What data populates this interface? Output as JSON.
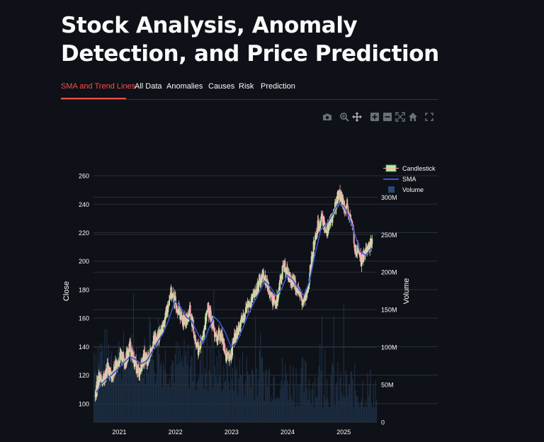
{
  "page": {
    "title": "Stock Analysis, Anomaly Detection, and Price Prediction"
  },
  "tabs": [
    {
      "label": "SMA and Trend Lines",
      "active": true
    },
    {
      "label": "All Data",
      "active": false
    },
    {
      "label": "Anomalies",
      "active": false
    },
    {
      "label": "Causes",
      "active": false
    },
    {
      "label": "Risk",
      "active": false
    },
    {
      "label": "Prediction",
      "active": false
    }
  ],
  "modebar": {
    "icons": [
      "camera-icon",
      "zoom-icon",
      "pan-icon",
      "zoom-in-icon",
      "zoom-out-icon",
      "autoscale-icon",
      "home-icon",
      "fullscreen-icon"
    ]
  },
  "colors": {
    "accent": "#ff4b4b",
    "increasing": "#c9e4a6",
    "decreasing": "#f2a7b0",
    "sma": "#3a55c8",
    "volume": "#2a4a6e",
    "background": "#0e1117"
  },
  "chart_data": {
    "type": "line",
    "title": "",
    "xlabel": "",
    "ylabel": "Close",
    "y2label": "Volume",
    "xlim": [
      2020.55,
      2025.6
    ],
    "ylim": [
      87,
      266
    ],
    "y2lim": [
      0,
      340
    ],
    "x_ticks": [
      2021,
      2022,
      2023,
      2024,
      2025
    ],
    "y_ticks": [
      100,
      120,
      140,
      160,
      180,
      200,
      220,
      240,
      260
    ],
    "y2_ticks": [
      {
        "value": 0,
        "label": "0"
      },
      {
        "value": 50,
        "label": "50M"
      },
      {
        "value": 100,
        "label": "100M"
      },
      {
        "value": 150,
        "label": "150M"
      },
      {
        "value": 200,
        "label": "200M"
      },
      {
        "value": 250,
        "label": "250M"
      },
      {
        "value": 300,
        "label": "300M"
      }
    ],
    "grid": true,
    "legend_position": "top-right",
    "legend": [
      {
        "name": "Candlestick",
        "type": "candlestick"
      },
      {
        "name": "SMA",
        "type": "line"
      },
      {
        "name": "Volume",
        "type": "bar"
      }
    ],
    "series": [
      {
        "name": "Close",
        "x": [
          2020.58,
          2020.65,
          2020.72,
          2020.8,
          2020.88,
          2020.95,
          2021.05,
          2021.12,
          2021.2,
          2021.28,
          2021.37,
          2021.45,
          2021.52,
          2021.6,
          2021.68,
          2021.76,
          2021.84,
          2021.92,
          2022.0,
          2022.06,
          2022.12,
          2022.2,
          2022.27,
          2022.35,
          2022.42,
          2022.5,
          2022.58,
          2022.66,
          2022.74,
          2022.82,
          2022.9,
          2022.97,
          2023.05,
          2023.12,
          2023.2,
          2023.28,
          2023.36,
          2023.45,
          2023.52,
          2023.58,
          2023.65,
          2023.72,
          2023.8,
          2023.88,
          2023.96,
          2024.05,
          2024.12,
          2024.2,
          2024.28,
          2024.35,
          2024.42,
          2024.48,
          2024.55,
          2024.62,
          2024.7,
          2024.78,
          2024.85,
          2024.92,
          2024.98,
          2025.05,
          2025.12,
          2025.18,
          2025.22,
          2025.27,
          2025.32,
          2025.38,
          2025.45,
          2025.52
        ],
        "values": [
          105,
          120,
          115,
          125,
          117,
          128,
          133,
          130,
          140,
          128,
          122,
          133,
          130,
          143,
          146,
          150,
          162,
          178,
          172,
          167,
          160,
          158,
          165,
          148,
          137,
          146,
          168,
          158,
          145,
          150,
          135,
          130,
          144,
          150,
          158,
          168,
          172,
          178,
          188,
          190,
          183,
          175,
          168,
          188,
          197,
          188,
          186,
          178,
          172,
          175,
          195,
          212,
          225,
          230,
          222,
          228,
          237,
          248,
          242,
          238,
          230,
          222,
          205,
          210,
          200,
          206,
          210,
          214
        ]
      },
      {
        "name": "SMA",
        "x": [
          2020.6,
          2020.7,
          2020.8,
          2020.9,
          2021.0,
          2021.1,
          2021.2,
          2021.3,
          2021.4,
          2021.5,
          2021.6,
          2021.7,
          2021.8,
          2021.9,
          2022.0,
          2022.1,
          2022.2,
          2022.3,
          2022.4,
          2022.5,
          2022.6,
          2022.7,
          2022.8,
          2022.9,
          2023.0,
          2023.1,
          2023.2,
          2023.3,
          2023.4,
          2023.5,
          2023.6,
          2023.7,
          2023.8,
          2023.9,
          2024.0,
          2024.1,
          2024.2,
          2024.3,
          2024.4,
          2024.5,
          2024.6,
          2024.7,
          2024.8,
          2024.9,
          2025.0,
          2025.1,
          2025.2,
          2025.3,
          2025.4,
          2025.5
        ],
        "values": [
          108,
          114,
          118,
          121,
          125,
          129,
          133,
          131,
          128,
          130,
          137,
          144,
          150,
          160,
          172,
          168,
          161,
          158,
          150,
          142,
          152,
          161,
          157,
          150,
          140,
          143,
          152,
          162,
          170,
          178,
          186,
          182,
          176,
          180,
          190,
          187,
          181,
          176,
          186,
          205,
          222,
          226,
          232,
          240,
          239,
          232,
          220,
          207,
          204,
          209
        ]
      }
    ]
  }
}
